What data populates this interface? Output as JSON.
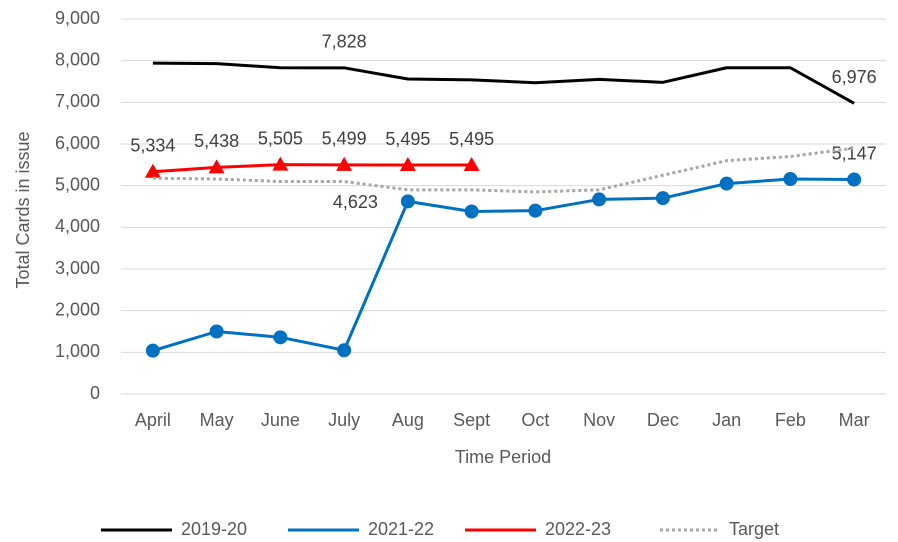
{
  "chart_data": {
    "type": "line",
    "x_label": "Time Period",
    "y_label": "Total Cards in issue",
    "categories": [
      "April",
      "May",
      "June",
      "July",
      "Aug",
      "Sept",
      "Oct",
      "Nov",
      "Dec",
      "Jan",
      "Feb",
      "Mar"
    ],
    "ylim": [
      0,
      9000
    ],
    "yticks": [
      0,
      {
        "value": 1000,
        "label": "1,000"
      },
      {
        "value": 2000,
        "label": "2,000"
      },
      {
        "value": 3000,
        "label": "3,000"
      },
      {
        "value": 4000,
        "label": "4,000"
      },
      {
        "value": 5000,
        "label": "5,000"
      },
      {
        "value": 6000,
        "label": "6,000"
      },
      {
        "value": 7000,
        "label": "7,000"
      },
      {
        "value": 8000,
        "label": "8,000"
      },
      {
        "value": 9000,
        "label": "9,000"
      }
    ],
    "grid": true,
    "legend": "bottom",
    "series": [
      {
        "name": "2019-20",
        "color": "#000000",
        "marker": "none",
        "dash": "solid",
        "values": [
          7940,
          7930,
          7830,
          7828,
          7560,
          7540,
          7470,
          7550,
          7480,
          7830,
          7830,
          6976
        ],
        "value_labels": [
          null,
          null,
          null,
          "7,828",
          null,
          null,
          null,
          null,
          null,
          null,
          null,
          "6,976"
        ]
      },
      {
        "name": "2021-22",
        "color": "#0070c0",
        "marker": "circle",
        "dash": "solid",
        "values": [
          1040,
          1500,
          1360,
          1050,
          4623,
          4380,
          4400,
          4670,
          4700,
          5050,
          5160,
          5147
        ],
        "value_labels": [
          null,
          null,
          null,
          null,
          "4,623",
          null,
          null,
          null,
          null,
          null,
          null,
          "5,147"
        ]
      },
      {
        "name": "2022-23",
        "color": "#ff0000",
        "marker": "triangle",
        "dash": "solid",
        "values": [
          5334,
          5438,
          5505,
          5499,
          5495,
          5495,
          null,
          null,
          null,
          null,
          null,
          null
        ],
        "value_labels": [
          "5,334",
          "5,438",
          "5,505",
          "5,499",
          "5,495",
          "5,495",
          null,
          null,
          null,
          null,
          null,
          null
        ]
      },
      {
        "name": "Target",
        "color": "#a6a6a6",
        "marker": "none",
        "dash": "dotted",
        "values": [
          5180,
          5160,
          5100,
          5100,
          4900,
          4900,
          4850,
          4900,
          5250,
          5600,
          5700,
          5900
        ]
      }
    ]
  }
}
